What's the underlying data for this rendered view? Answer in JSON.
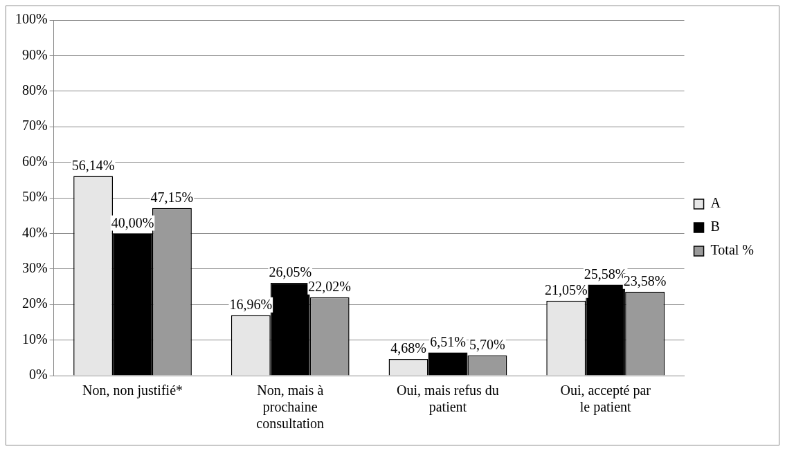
{
  "chart_data": {
    "type": "bar",
    "categories": [
      "Non, non justifié*",
      "Non, mais à prochaine consultation",
      "Oui, mais refus du patient",
      "Oui, accepté par le patient"
    ],
    "series": [
      {
        "name": "A",
        "color": "#e6e6e6",
        "values": [
          56.14,
          16.96,
          4.68,
          21.05
        ],
        "value_labels": [
          "56,14%",
          "16,96%",
          "4,68%",
          "21,05%"
        ]
      },
      {
        "name": "B",
        "color": "#000000",
        "values": [
          40.0,
          26.05,
          6.51,
          25.58
        ],
        "value_labels": [
          "40,00%",
          "26,05%",
          "6,51%",
          "25,58%"
        ]
      },
      {
        "name": "Total %",
        "color": "#9a9a9a",
        "values": [
          47.15,
          22.02,
          5.7,
          23.58
        ],
        "value_labels": [
          "47,15%",
          "22,02%",
          "5,70%",
          "23,58%"
        ]
      }
    ],
    "ylim": [
      0,
      100
    ],
    "yticks": [
      {
        "value": 0,
        "label": "0%"
      },
      {
        "value": 10,
        "label": "10%"
      },
      {
        "value": 20,
        "label": "20%"
      },
      {
        "value": 30,
        "label": "30%"
      },
      {
        "value": 40,
        "label": "40%"
      },
      {
        "value": 50,
        "label": "50%"
      },
      {
        "value": 60,
        "label": "60%"
      },
      {
        "value": 70,
        "label": "70%"
      },
      {
        "value": 80,
        "label": "80%"
      },
      {
        "value": 90,
        "label": "90%"
      },
      {
        "value": 100,
        "label": "100%"
      }
    ],
    "grid": "y",
    "legend": "right"
  }
}
